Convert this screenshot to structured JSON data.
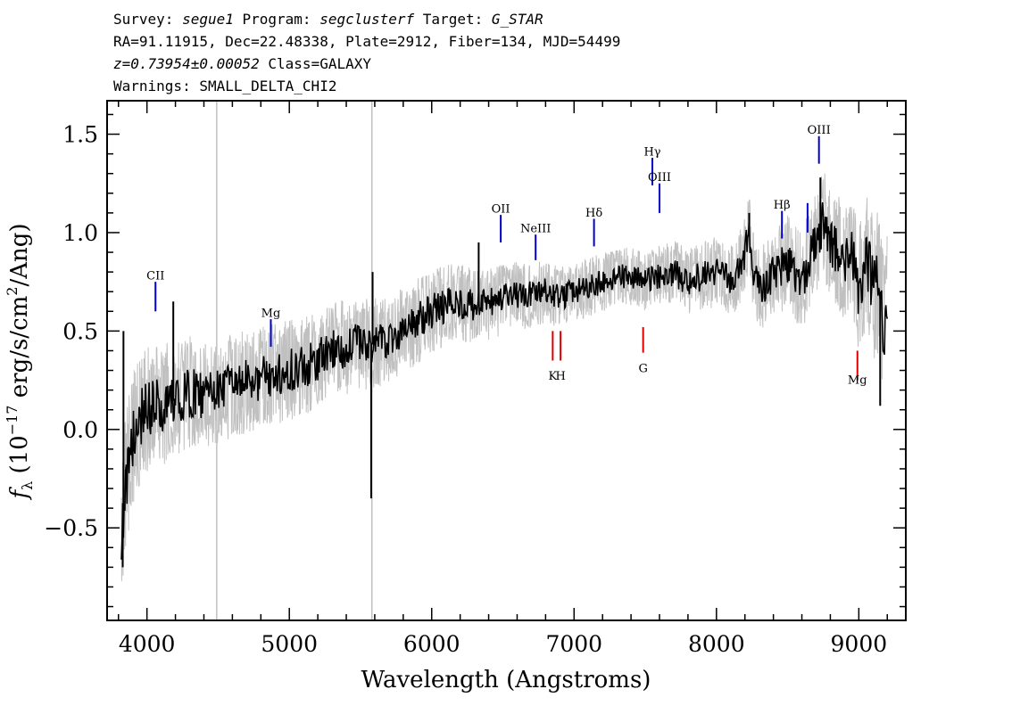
{
  "header": {
    "line1": {
      "survey_label": "Survey: ",
      "survey": "segue1",
      "program_label": " Program: ",
      "program": "segclusterf",
      "target_label": " Target: ",
      "target": "G_STAR"
    },
    "line2": "RA=91.11915, Dec=22.48338, Plate=2912, Fiber=134, MJD=54499",
    "line3": {
      "redshift": "z=0.73954±0.00052",
      "class": " Class=GALAXY"
    },
    "line4": "Warnings: SMALL_DELTA_CHI2"
  },
  "chart_data": {
    "type": "line",
    "xlabel": "Wavelength (Angstroms)",
    "ylabel_parts": {
      "f": "f",
      "sub": "λ",
      "open": " (10",
      "exp": "−17",
      "unit": " erg/s/cm",
      "exp2": "2",
      "tail": "/Ang)"
    },
    "xlim": [
      3720,
      9330
    ],
    "ylim": [
      -0.97,
      1.67
    ],
    "x_ticks": [
      {
        "value": 4000,
        "label": "4000"
      },
      {
        "value": 5000,
        "label": "5000"
      },
      {
        "value": 6000,
        "label": "6000"
      },
      {
        "value": 7000,
        "label": "7000"
      },
      {
        "value": 8000,
        "label": "8000"
      },
      {
        "value": 9000,
        "label": "9000"
      }
    ],
    "x_minor_step": 200,
    "y_ticks": [
      {
        "value": -0.5,
        "label": "−0.5"
      },
      {
        "value": 0.0,
        "label": "0.0"
      },
      {
        "value": 0.5,
        "label": "0.5"
      },
      {
        "value": 1.0,
        "label": "1.0"
      },
      {
        "value": 1.5,
        "label": "1.5"
      }
    ],
    "y_minor_step": 0.1,
    "grid": false,
    "legend": "none",
    "colors": {
      "flux": "#000000",
      "error": "#c0c0c0",
      "emission": "#0000cc",
      "absorption": "#dd0000"
    },
    "series": [
      {
        "role": "flux",
        "x": [
          3820,
          3880,
          3950,
          4000,
          4100,
          4200,
          4300,
          4400,
          4500,
          4600,
          4700,
          4800,
          4900,
          5000,
          5100,
          5200,
          5300,
          5400,
          5500,
          5600,
          5700,
          5800,
          5900,
          6000,
          6100,
          6200,
          6300,
          6400,
          6500,
          6600,
          6700,
          6800,
          6900,
          7000,
          7100,
          7200,
          7300,
          7400,
          7500,
          7600,
          7700,
          7800,
          7900,
          8000,
          8100,
          8150,
          8200,
          8230,
          8250,
          8300,
          8400,
          8500,
          8600,
          8700,
          8750,
          8800,
          8850,
          8900,
          8950,
          9000,
          9050,
          9100,
          9150,
          9180,
          9200
        ],
        "y": [
          -0.5,
          -0.1,
          0.05,
          0.1,
          0.12,
          0.15,
          0.18,
          0.18,
          0.2,
          0.22,
          0.24,
          0.26,
          0.28,
          0.3,
          0.32,
          0.35,
          0.4,
          0.42,
          0.44,
          0.43,
          0.46,
          0.5,
          0.55,
          0.6,
          0.63,
          0.65,
          0.62,
          0.64,
          0.66,
          0.68,
          0.68,
          0.7,
          0.67,
          0.7,
          0.72,
          0.75,
          0.77,
          0.78,
          0.75,
          0.78,
          0.8,
          0.75,
          0.78,
          0.8,
          0.75,
          0.8,
          0.9,
          1.0,
          0.85,
          0.7,
          0.8,
          0.85,
          0.75,
          0.95,
          1.05,
          0.95,
          0.9,
          0.85,
          0.88,
          0.7,
          0.85,
          0.75,
          0.7,
          0.4,
          0.6
        ]
      },
      {
        "role": "error",
        "x": [
          3820,
          4000,
          4500,
          5000,
          5500,
          6000,
          6500,
          7000,
          7500,
          8000,
          8200,
          8500,
          8700,
          8900,
          9000,
          9100,
          9200
        ],
        "y": [
          0.25,
          0.22,
          0.18,
          0.17,
          0.16,
          0.14,
          0.12,
          0.1,
          0.1,
          0.12,
          0.13,
          0.16,
          0.18,
          0.2,
          0.22,
          0.25,
          0.3
        ]
      }
    ],
    "spikes": [
      {
        "x": 3830,
        "y": -0.7
      },
      {
        "x": 3835,
        "y": 0.5
      },
      {
        "x": 4185,
        "y": 0.65
      },
      {
        "x": 5575,
        "y": -0.35
      },
      {
        "x": 5585,
        "y": 0.8
      },
      {
        "x": 6330,
        "y": 0.95
      },
      {
        "x": 8230,
        "y": 1.1
      },
      {
        "x": 8730,
        "y": 1.28
      },
      {
        "x": 9150,
        "y": 0.12
      }
    ],
    "vertical_lines": [
      {
        "x": 4490
      },
      {
        "x": 5580
      }
    ],
    "annotations": [
      {
        "label": "CII",
        "x": 4060,
        "y1": 0.6,
        "y2": 0.75,
        "kind": "emission",
        "text_y": 0.78
      },
      {
        "label": "Mg",
        "x": 4870,
        "y1": 0.42,
        "y2": 0.56,
        "kind": "emission",
        "text_y": 0.59
      },
      {
        "label": "OII",
        "x": 6485,
        "y1": 0.95,
        "y2": 1.09,
        "kind": "emission",
        "text_y": 1.12
      },
      {
        "label": "NeIII",
        "x": 6730,
        "y1": 0.86,
        "y2": 0.99,
        "kind": "emission",
        "text_y": 1.02
      },
      {
        "label": "Hδ",
        "x": 7140,
        "y1": 0.93,
        "y2": 1.07,
        "kind": "emission",
        "text_y": 1.1
      },
      {
        "label": "Hγ",
        "x": 7550,
        "y1": 1.24,
        "y2": 1.38,
        "kind": "emission",
        "text_y": 1.41
      },
      {
        "label": "OIII",
        "x": 7600,
        "y1": 1.1,
        "y2": 1.25,
        "kind": "emission",
        "text_y": 1.28
      },
      {
        "label": "Hβ",
        "x": 8460,
        "y1": 0.97,
        "y2": 1.11,
        "kind": "emission",
        "text_y": 1.14
      },
      {
        "label": "OIII",
        "x": 8720,
        "y1": 1.35,
        "y2": 1.49,
        "kind": "emission",
        "text_y": 1.52
      },
      {
        "label": "",
        "x": 8640,
        "y1": 1.0,
        "y2": 1.15,
        "kind": "emission",
        "text_y": 1.18
      },
      {
        "label": "K",
        "x": 6850,
        "y1": 0.35,
        "y2": 0.5,
        "kind": "absorption",
        "text_y": 0.27
      },
      {
        "label": "H",
        "x": 6905,
        "y1": 0.35,
        "y2": 0.5,
        "kind": "absorption",
        "text_y": 0.27
      },
      {
        "label": "G",
        "x": 7485,
        "y1": 0.39,
        "y2": 0.52,
        "kind": "absorption",
        "text_y": 0.31
      },
      {
        "label": "Mg",
        "x": 8990,
        "y1": 0.25,
        "y2": 0.4,
        "kind": "absorption",
        "text_y": 0.25
      }
    ]
  }
}
